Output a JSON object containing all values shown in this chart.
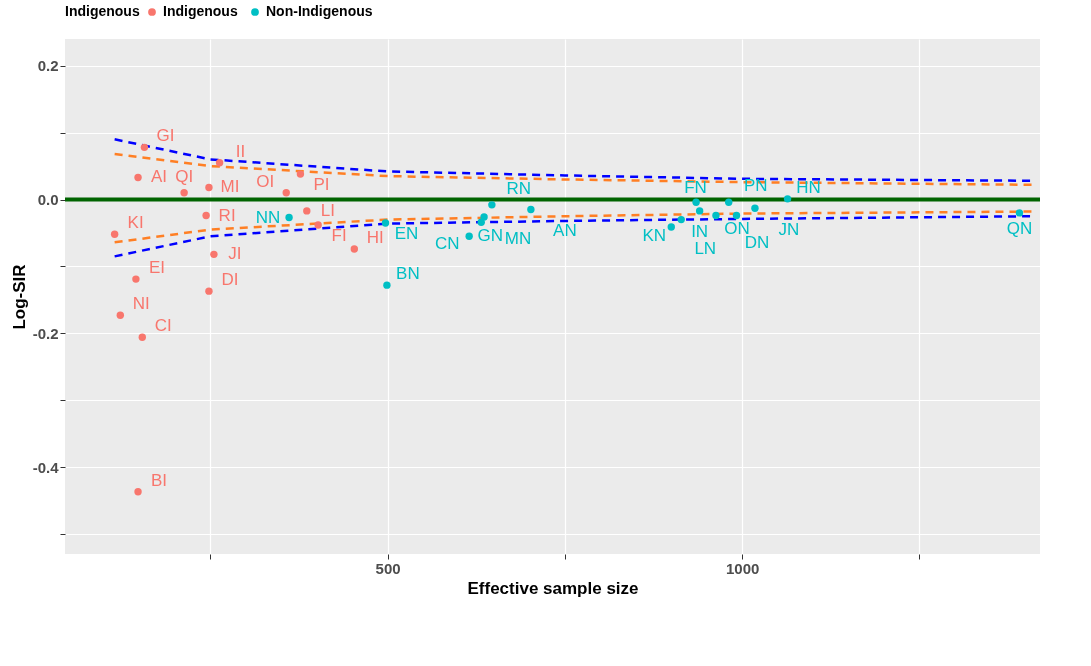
{
  "chart_data": {
    "type": "scatter",
    "xlabel": "Effective sample size",
    "ylabel": "Log-SIR",
    "legend_title": "Indigenous",
    "legend": "top",
    "grid": true,
    "xlim": [
      45,
      1420
    ],
    "xticks": [
      {
        "value": 250,
        "label": null
      },
      500,
      {
        "value": 750,
        "label": null
      },
      1000,
      {
        "value": 1250,
        "label": null
      }
    ],
    "ylim": [
      -0.53,
      0.24
    ],
    "yticks": [
      {
        "value": -0.5,
        "label": null
      },
      -0.4,
      {
        "value": -0.3,
        "label": null
      },
      -0.2,
      {
        "value": -0.1,
        "label": null
      },
      {
        "value": 0,
        "label": "0.0"
      },
      {
        "value": 0.1,
        "label": null
      },
      0.2
    ],
    "ref_lines": [
      {
        "axis": "y",
        "value": 0,
        "label": null,
        "color": "#006400",
        "line_style": "solid"
      }
    ],
    "series": [
      {
        "type": "line",
        "line_style": "dashed",
        "color": "#0000ff",
        "x": [
          115,
          250,
          500,
          750,
          1000,
          1410
        ],
        "values": [
          0.09,
          0.06,
          0.042,
          0.036,
          0.031,
          0.028
        ]
      },
      {
        "type": "line",
        "line_style": "dashed",
        "color": "#ff7f24",
        "x": [
          115,
          250,
          500,
          750,
          1000,
          1410
        ],
        "values": [
          0.068,
          0.05,
          0.035,
          0.03,
          0.026,
          0.022
        ]
      },
      {
        "type": "line",
        "line_style": "dashed",
        "color": "#ff7f24",
        "x": [
          115,
          250,
          500,
          750,
          1000,
          1410
        ],
        "values": [
          -0.064,
          -0.045,
          -0.03,
          -0.025,
          -0.021,
          -0.018
        ]
      },
      {
        "type": "line",
        "line_style": "dashed",
        "color": "#0000ff",
        "x": [
          115,
          250,
          500,
          750,
          1000,
          1410
        ],
        "values": [
          -0.085,
          -0.055,
          -0.036,
          -0.032,
          -0.029,
          -0.025
        ]
      },
      {
        "name": "Indigenous",
        "marker": "circle",
        "color": "#f8766d",
        "x": [
          157,
          148,
          263,
          248,
          377,
          357,
          213,
          386,
          244,
          402,
          453,
          115,
          255,
          145,
          248,
          123,
          154,
          148
        ],
        "values": [
          0.078,
          0.033,
          0.055,
          0.018,
          0.038,
          0.01,
          0.01,
          -0.017,
          -0.024,
          -0.038,
          -0.074,
          -0.052,
          -0.082,
          -0.119,
          -0.137,
          -0.173,
          -0.206,
          -0.437
        ]
      },
      {
        "name": "Non-Indigenous",
        "marker": "circle",
        "color": "#00bfc4",
        "x": [
          361,
          497,
          499,
          615,
          632,
          636,
          647,
          702,
          935,
          940,
          914,
          900,
          963,
          981,
          992,
          1018,
          1064,
          1391
        ],
        "values": [
          -0.027,
          -0.035,
          -0.128,
          -0.055,
          -0.034,
          -0.026,
          -0.008,
          -0.015,
          -0.004,
          -0.017,
          -0.03,
          -0.041,
          -0.024,
          -0.004,
          -0.024,
          -0.013,
          0.001,
          -0.02
        ]
      }
    ],
    "annotations": [
      {
        "text": "GI",
        "x": 157,
        "y": 0.078
      },
      {
        "text": "AI",
        "x": 148,
        "y": 0.033
      },
      {
        "text": "II",
        "x": 263,
        "y": 0.055
      },
      {
        "text": "MI",
        "x": 248,
        "y": 0.018
      },
      {
        "text": "PI",
        "x": 377,
        "y": 0.038
      },
      {
        "text": "OI",
        "x": 357,
        "y": 0.01
      },
      {
        "text": "QI",
        "x": 213,
        "y": 0.01
      },
      {
        "text": "LI",
        "x": 386,
        "y": -0.017
      },
      {
        "text": "RI",
        "x": 244,
        "y": -0.024
      },
      {
        "text": "FI",
        "x": 402,
        "y": -0.038
      },
      {
        "text": "HI",
        "x": 453,
        "y": -0.074
      },
      {
        "text": "KI",
        "x": 115,
        "y": -0.052
      },
      {
        "text": "JI",
        "x": 255,
        "y": -0.082
      },
      {
        "text": "EI",
        "x": 145,
        "y": -0.119
      },
      {
        "text": "DI",
        "x": 248,
        "y": -0.137
      },
      {
        "text": "NI",
        "x": 123,
        "y": -0.173
      },
      {
        "text": "CI",
        "x": 154,
        "y": -0.206
      },
      {
        "text": "BI",
        "x": 148,
        "y": -0.437
      },
      {
        "text": "NN",
        "x": 361,
        "y": -0.027
      },
      {
        "text": "EN",
        "x": 497,
        "y": -0.035
      },
      {
        "text": "BN",
        "x": 499,
        "y": -0.128
      },
      {
        "text": "GN",
        "x": 615,
        "y": -0.055
      },
      {
        "text": "CN",
        "x": 632,
        "y": -0.034
      },
      {
        "text": "MN",
        "x": 636,
        "y": -0.026
      },
      {
        "text": "RN",
        "x": 647,
        "y": -0.008
      },
      {
        "text": "AN",
        "x": 702,
        "y": -0.015
      },
      {
        "text": "ON",
        "x": 935,
        "y": -0.004
      },
      {
        "text": "IN",
        "x": 940,
        "y": -0.017
      },
      {
        "text": "KN",
        "x": 914,
        "y": -0.03
      },
      {
        "text": "LN",
        "x": 900,
        "y": -0.041
      },
      {
        "text": "DN",
        "x": 963,
        "y": -0.024
      },
      {
        "text": "PN",
        "x": 981,
        "y": -0.004
      },
      {
        "text": "FN",
        "x": 992,
        "y": -0.024
      },
      {
        "text": "JN",
        "x": 1018,
        "y": -0.013
      },
      {
        "text": "HN",
        "x": 1064,
        "y": 0.001
      },
      {
        "text": "QN",
        "x": 1391,
        "y": -0.02
      }
    ]
  }
}
